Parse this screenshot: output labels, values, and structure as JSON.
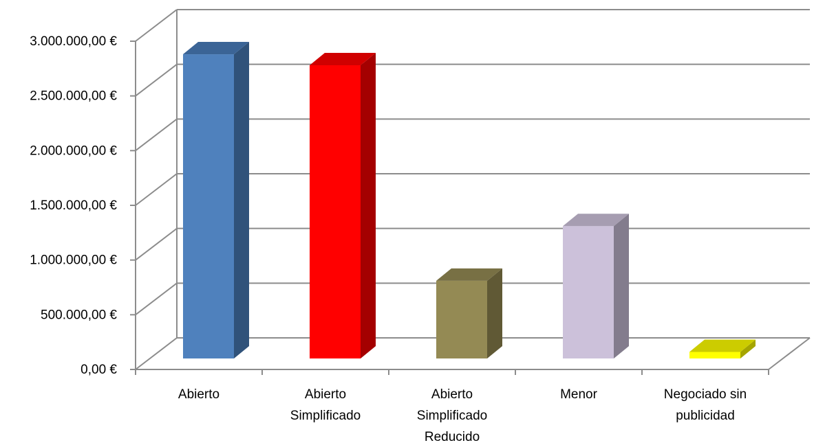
{
  "chart_data": {
    "type": "bar",
    "style": "3d-column",
    "categories": [
      [
        "Abierto"
      ],
      [
        "Abierto",
        "Simplificado"
      ],
      [
        "Abierto",
        "Simplificado",
        "Reducido"
      ],
      [
        "Menor"
      ],
      [
        "Negociado sin",
        "publicidad"
      ]
    ],
    "values": [
      2780000,
      2680000,
      710000,
      1210000,
      60000
    ],
    "bar_colors": [
      {
        "front": "#4F81BD",
        "side": "#30527A",
        "top": "#3B6496"
      },
      {
        "front": "#FF0000",
        "side": "#A40000",
        "top": "#D00000"
      },
      {
        "front": "#948A54",
        "side": "#605935",
        "top": "#787044"
      },
      {
        "front": "#CCC1DA",
        "side": "#837C8D",
        "top": "#A69DB1"
      },
      {
        "front": "#FFFF00",
        "side": "#A5A500",
        "top": "#CCCC00"
      }
    ],
    "ylim": [
      0,
      3000000
    ],
    "ytick_step": 500000,
    "ytick_labels": [
      "0,00 €",
      "500.000,00 €",
      "1.000.000,00 €",
      "1.500.000,00 €",
      "2.000.000,00 €",
      "2.500.000,00 €",
      "3.000.000,00 €"
    ],
    "title": "",
    "xlabel": "",
    "ylabel": "",
    "grid": true,
    "legend": "none"
  }
}
